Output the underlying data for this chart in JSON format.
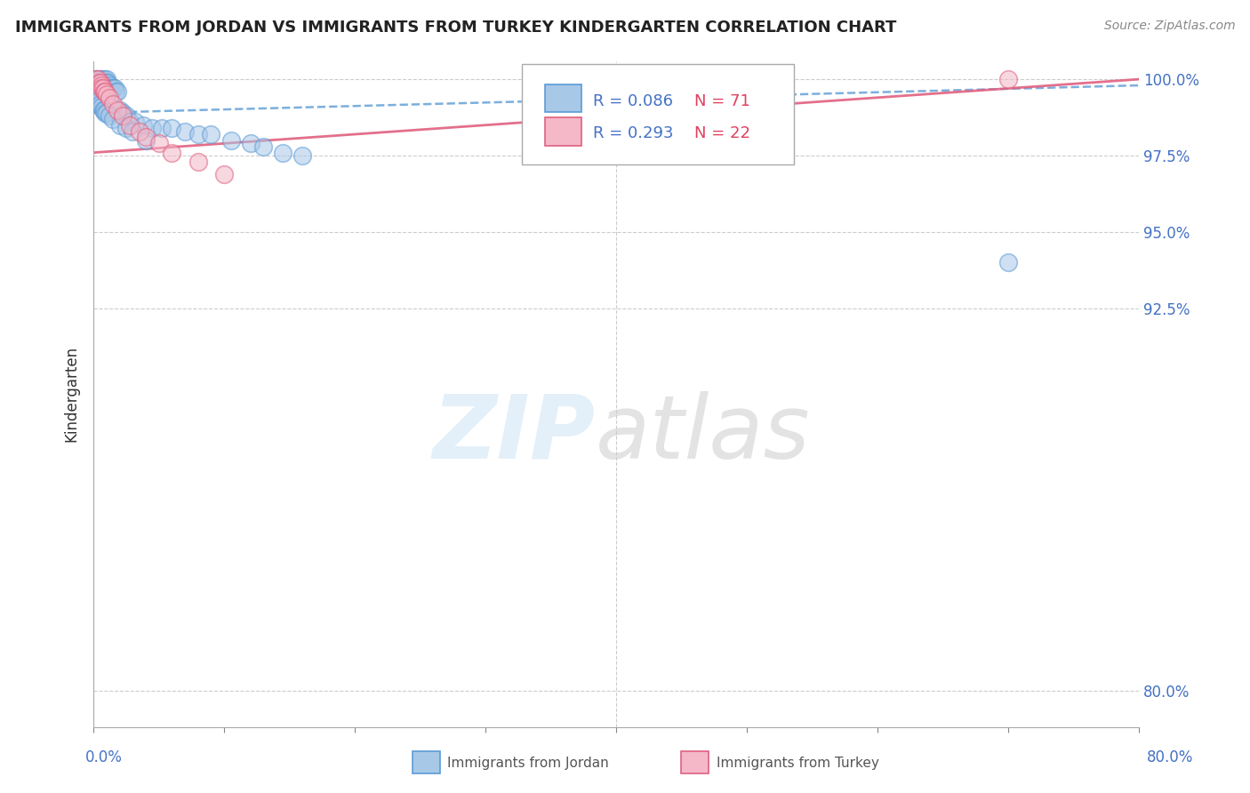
{
  "title": "IMMIGRANTS FROM JORDAN VS IMMIGRANTS FROM TURKEY KINDERGARTEN CORRELATION CHART",
  "source": "Source: ZipAtlas.com",
  "ylabel": "Kindergarten",
  "color_jordan": "#a8c8e8",
  "color_jordan_edge": "#5b9bd5",
  "color_turkey": "#f4b8c8",
  "color_turkey_edge": "#e06080",
  "color_jordan_line": "#5b9bd5",
  "color_turkey_line": "#e06080",
  "xlim": [
    0.0,
    0.8
  ],
  "ylim": [
    0.788,
    1.006
  ],
  "yticks": [
    1.0,
    0.975,
    0.95,
    0.925,
    0.8
  ],
  "ytick_labels": [
    "100.0%",
    "97.5%",
    "95.0%",
    "92.5%",
    "80.0%"
  ],
  "xtick_label_left": "0.0%",
  "xtick_label_right": "80.0%",
  "legend_r1": "R = 0.086",
  "legend_n1": "N = 71",
  "legend_r2": "R = 0.293",
  "legend_n2": "N = 22",
  "jordan_x": [
    0.001,
    0.001,
    0.002,
    0.002,
    0.002,
    0.003,
    0.003,
    0.003,
    0.003,
    0.004,
    0.004,
    0.004,
    0.005,
    0.005,
    0.005,
    0.005,
    0.006,
    0.006,
    0.006,
    0.007,
    0.007,
    0.007,
    0.008,
    0.008,
    0.009,
    0.009,
    0.01,
    0.01,
    0.01,
    0.011,
    0.011,
    0.012,
    0.013,
    0.014,
    0.015,
    0.016,
    0.017,
    0.018,
    0.02,
    0.022,
    0.025,
    0.028,
    0.032,
    0.038,
    0.045,
    0.052,
    0.06,
    0.07,
    0.08,
    0.09,
    0.105,
    0.12,
    0.13,
    0.145,
    0.16,
    0.002,
    0.003,
    0.004,
    0.005,
    0.006,
    0.007,
    0.008,
    0.009,
    0.01,
    0.012,
    0.015,
    0.02,
    0.025,
    0.03,
    0.04,
    0.7
  ],
  "jordan_y": [
    1.0,
    0.999,
    1.0,
    0.999,
    0.998,
    1.0,
    0.999,
    0.998,
    0.997,
    1.0,
    0.999,
    0.997,
    1.0,
    0.999,
    0.998,
    0.996,
    1.0,
    0.999,
    0.997,
    1.0,
    0.999,
    0.997,
    0.999,
    0.997,
    1.0,
    0.998,
    1.0,
    0.999,
    0.997,
    0.999,
    0.997,
    0.998,
    0.997,
    0.997,
    0.997,
    0.997,
    0.996,
    0.996,
    0.99,
    0.989,
    0.988,
    0.986,
    0.986,
    0.985,
    0.984,
    0.984,
    0.984,
    0.983,
    0.982,
    0.982,
    0.98,
    0.979,
    0.978,
    0.976,
    0.975,
    0.995,
    0.994,
    0.993,
    0.992,
    0.991,
    0.99,
    0.99,
    0.989,
    0.989,
    0.988,
    0.987,
    0.985,
    0.984,
    0.983,
    0.98,
    0.94
  ],
  "turkey_x": [
    0.002,
    0.003,
    0.004,
    0.005,
    0.006,
    0.006,
    0.007,
    0.008,
    0.009,
    0.01,
    0.012,
    0.015,
    0.018,
    0.022,
    0.028,
    0.035,
    0.04,
    0.05,
    0.06,
    0.08,
    0.1,
    0.7
  ],
  "turkey_y": [
    1.0,
    1.0,
    0.999,
    0.999,
    0.998,
    0.997,
    0.997,
    0.996,
    0.996,
    0.995,
    0.994,
    0.992,
    0.99,
    0.988,
    0.985,
    0.983,
    0.981,
    0.979,
    0.976,
    0.973,
    0.969,
    1.0
  ],
  "jordan_line_x": [
    0.0,
    0.8
  ],
  "jordan_line_y": [
    0.989,
    0.998
  ],
  "turkey_line_x": [
    0.0,
    0.8
  ],
  "turkey_line_y": [
    0.976,
    1.0
  ]
}
